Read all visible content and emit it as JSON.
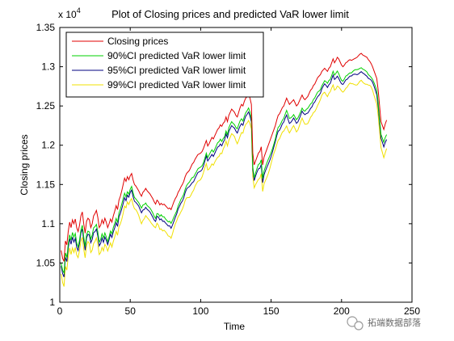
{
  "chart_data": {
    "type": "line",
    "title": "Plot of Closing prices and predicted VaR lower limit",
    "xlabel": "Time",
    "ylabel": "Closing prices",
    "xlim": [
      0,
      250
    ],
    "ylim": [
      10000,
      13500
    ],
    "x_ticks": [
      0,
      50,
      100,
      150,
      200,
      250
    ],
    "y_ticks": [
      1,
      1.05,
      1.1,
      1.15,
      1.2,
      1.25,
      1.3,
      1.35
    ],
    "y_multiplier_base": "x 10",
    "y_multiplier_exp": "4",
    "y_tick_scale": 10000,
    "legend_location": "top-left",
    "grid": false,
    "closing_prices": [
      10660,
      10560,
      10520,
      10780,
      10730,
      10900,
      11020,
      10950,
      11050,
      11000,
      11060,
      10950,
      10900,
      10980,
      11100,
      11150,
      11000,
      10880,
      11030,
      11070,
      11050,
      10950,
      11000,
      11100,
      11130,
      11170,
      11080,
      10950,
      10980,
      11050,
      11000,
      11070,
      11020,
      10950,
      11000,
      11060,
      11020,
      11100,
      11160,
      11230,
      11180,
      11300,
      11350,
      11420,
      11500,
      11580,
      11540,
      11600,
      11560,
      11610,
      11640,
      11560,
      11500,
      11480,
      11450,
      11420,
      11380,
      11350,
      11400,
      11420,
      11450,
      11420,
      11400,
      11380,
      11350,
      11320,
      11280,
      11250,
      11300,
      11280,
      11240,
      11260,
      11240,
      11250,
      11230,
      11210,
      11190,
      11200,
      11180,
      11230,
      11280,
      11320,
      11350,
      11400,
      11430,
      11470,
      11500,
      11540,
      11600,
      11640,
      11660,
      11680,
      11720,
      11760,
      11780,
      11820,
      11850,
      11880,
      11890,
      11900,
      11920,
      11960,
      12010,
      12060,
      11990,
      12020,
      12060,
      12100,
      12080,
      12120,
      12160,
      12200,
      12220,
      12260,
      12240,
      12280,
      12300,
      12360,
      12300,
      12380,
      12420,
      12460,
      12440,
      12420,
      12380,
      12360,
      12420,
      12480,
      12520,
      12500,
      12560,
      12600,
      12620,
      12650,
      12600,
      12520,
      11900,
      11750,
      11800,
      11850,
      11900,
      11920,
      11980,
      11750,
      11850,
      11900,
      11950,
      12000,
      12050,
      12100,
      12150,
      12200,
      12250,
      12320,
      12380,
      12400,
      12440,
      12480,
      12500,
      12550,
      12600,
      12560,
      12520,
      12540,
      12560,
      12580,
      12540,
      12500,
      12520,
      12560,
      12600,
      12640,
      12600,
      12580,
      12600,
      12620,
      12660,
      12700,
      12720,
      12760,
      12780,
      12820,
      12860,
      12880,
      12900,
      12940,
      12960,
      12980,
      12960,
      12940,
      12980,
      13000,
      13050,
      13100,
      13050,
      13080,
      13120,
      13100,
      13060,
      13020,
      13000,
      13020,
      13050,
      13060,
      13080,
      13090,
      13080,
      13090,
      13100,
      13110,
      13120,
      13140,
      13160,
      13170,
      13150,
      13140,
      13130,
      13120,
      13090,
      13070,
      13040,
      13000,
      12950,
      12900,
      12850,
      12700,
      12500,
      12300,
      12250,
      12200,
      12270,
      12320
    ]
  },
  "legend": {
    "items": [
      {
        "label": "Closing prices",
        "color": "#e00000"
      },
      {
        "label": "90%CI predicted VaR lower limit",
        "color": "#00d000"
      },
      {
        "label": "95%CI predicted VaR lower limit",
        "color": "#000080"
      },
      {
        "label": "99%CI predicted VaR lower limit",
        "color": "#f0e000"
      }
    ]
  },
  "watermark": {
    "text": "拓端数据部落",
    "icon": "wechat-icon"
  }
}
